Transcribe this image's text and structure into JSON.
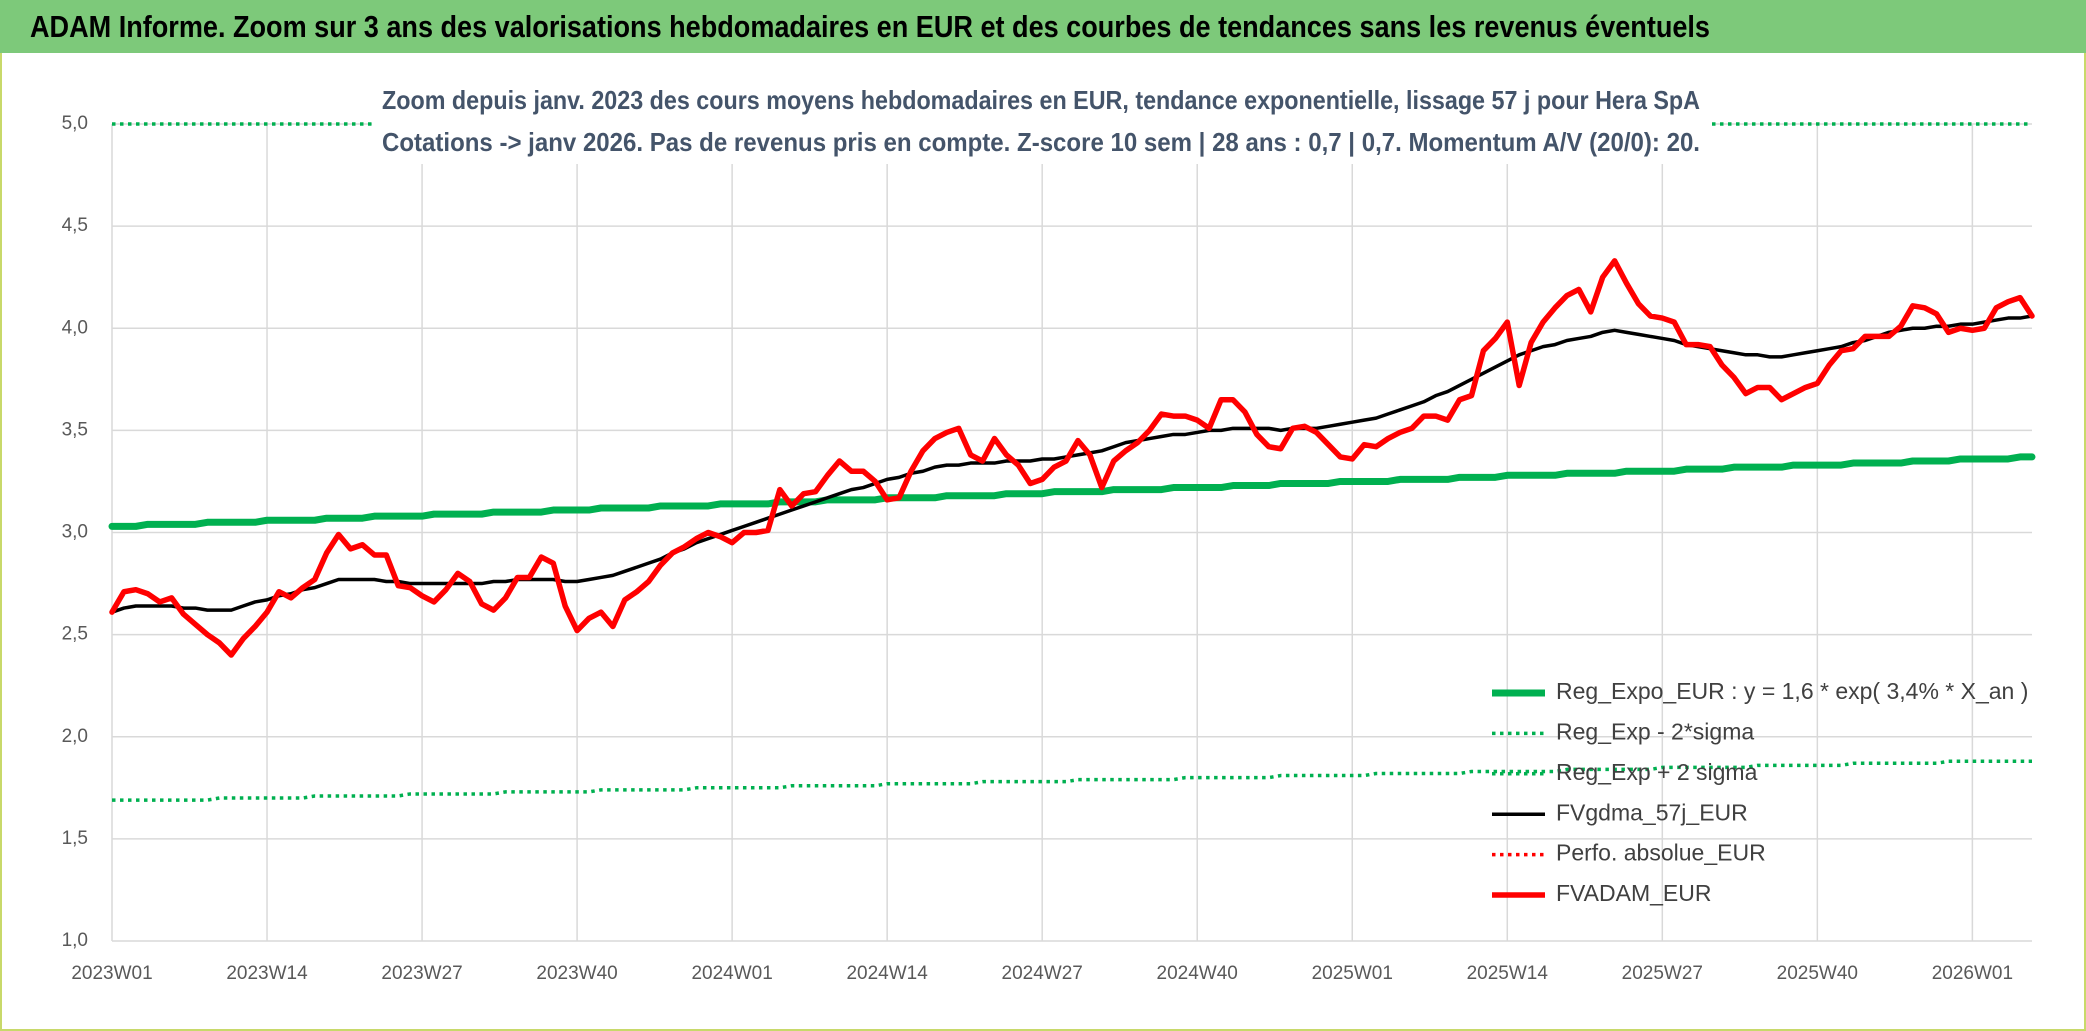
{
  "chart_data": {
    "type": "line",
    "title": "ADAM Informe. Zoom sur 3 ans des valorisations hebdomadaires en EUR et des courbes de tendances sans les revenus éventuels",
    "subtitle": [
      "Zoom depuis janv. 2023 des cours moyens hebdomadaires en EUR, tendance exponentielle, lissage 57 j pour Hera SpA",
      "Cotations -> janv 2026. Pas de revenus pris en compte. Z-score 10 sem | 28 ans : 0,7 | 0,7. Momentum A/V (20/0): 20."
    ],
    "categories": [
      "2023W01",
      null,
      null,
      null,
      null,
      null,
      null,
      null,
      null,
      null,
      null,
      null,
      null,
      "2023W14",
      null,
      null,
      null,
      null,
      null,
      null,
      null,
      null,
      null,
      null,
      null,
      null,
      "2023W27",
      null,
      null,
      null,
      null,
      null,
      null,
      null,
      null,
      null,
      null,
      null,
      null,
      "2023W40",
      null,
      null,
      null,
      null,
      null,
      null,
      null,
      null,
      null,
      null,
      null,
      null,
      "2024W01",
      null,
      null,
      null,
      null,
      null,
      null,
      null,
      null,
      null,
      null,
      null,
      null,
      "2024W14",
      null,
      null,
      null,
      null,
      null,
      null,
      null,
      null,
      null,
      null,
      null,
      null,
      "2024W27",
      null,
      null,
      null,
      null,
      null,
      null,
      null,
      null,
      null,
      null,
      null,
      null,
      "2024W40",
      null,
      null,
      null,
      null,
      null,
      null,
      null,
      null,
      null,
      null,
      null,
      null,
      "2025W01",
      null,
      null,
      null,
      null,
      null,
      null,
      null,
      null,
      null,
      null,
      null,
      null,
      "2025W14",
      null,
      null,
      null,
      null,
      null,
      null,
      null,
      null,
      null,
      null,
      null,
      null,
      "2025W27",
      null,
      null,
      null,
      null,
      null,
      null,
      null,
      null,
      null,
      null,
      null,
      null,
      "2025W40",
      null,
      null,
      null,
      null,
      null,
      null,
      null,
      null,
      null,
      null,
      null,
      null,
      "2026W01",
      null,
      null,
      null,
      null,
      null
    ],
    "ylim": [
      1,
      5
    ],
    "yticks": [
      {
        "value": 1,
        "label": "1,0"
      },
      {
        "value": 1.5,
        "label": "1,5"
      },
      {
        "value": 2,
        "label": "2,0"
      },
      {
        "value": 2.5,
        "label": "2,5"
      },
      {
        "value": 3,
        "label": "3,0"
      },
      {
        "value": 3.5,
        "label": "3,5"
      },
      {
        "value": 4,
        "label": "4,0"
      },
      {
        "value": 4.5,
        "label": "4,5"
      },
      {
        "value": 5,
        "label": "5,0"
      }
    ],
    "grid": true,
    "legend": "lower right",
    "series": [
      {
        "name": "Reg_Expo_EUR : y = 1,6 * exp( 3,4% *  X_an )",
        "color": "#00b050",
        "style": "thick",
        "values": [
          3.03,
          3.03,
          3.03,
          3.04,
          3.04,
          3.04,
          3.04,
          3.04,
          3.05,
          3.05,
          3.05,
          3.05,
          3.05,
          3.06,
          3.06,
          3.06,
          3.06,
          3.06,
          3.07,
          3.07,
          3.07,
          3.07,
          3.08,
          3.08,
          3.08,
          3.08,
          3.08,
          3.09,
          3.09,
          3.09,
          3.09,
          3.09,
          3.1,
          3.1,
          3.1,
          3.1,
          3.1,
          3.11,
          3.11,
          3.11,
          3.11,
          3.12,
          3.12,
          3.12,
          3.12,
          3.12,
          3.13,
          3.13,
          3.13,
          3.13,
          3.13,
          3.14,
          3.14,
          3.14,
          3.14,
          3.14,
          3.15,
          3.15,
          3.15,
          3.15,
          3.16,
          3.16,
          3.16,
          3.16,
          3.16,
          3.17,
          3.17,
          3.17,
          3.17,
          3.17,
          3.18,
          3.18,
          3.18,
          3.18,
          3.18,
          3.19,
          3.19,
          3.19,
          3.19,
          3.2,
          3.2,
          3.2,
          3.2,
          3.2,
          3.21,
          3.21,
          3.21,
          3.21,
          3.21,
          3.22,
          3.22,
          3.22,
          3.22,
          3.22,
          3.23,
          3.23,
          3.23,
          3.23,
          3.24,
          3.24,
          3.24,
          3.24,
          3.24,
          3.25,
          3.25,
          3.25,
          3.25,
          3.25,
          3.26,
          3.26,
          3.26,
          3.26,
          3.26,
          3.27,
          3.27,
          3.27,
          3.27,
          3.28,
          3.28,
          3.28,
          3.28,
          3.28,
          3.29,
          3.29,
          3.29,
          3.29,
          3.29,
          3.3,
          3.3,
          3.3,
          3.3,
          3.3,
          3.31,
          3.31,
          3.31,
          3.31,
          3.32,
          3.32,
          3.32,
          3.32,
          3.32,
          3.33,
          3.33,
          3.33,
          3.33,
          3.33,
          3.34,
          3.34,
          3.34,
          3.34,
          3.34,
          3.35,
          3.35,
          3.35,
          3.35,
          3.36,
          3.36,
          3.36,
          3.36,
          3.36,
          3.37,
          3.37
        ]
      },
      {
        "name": "Reg_Exp - 2*sigma",
        "color": "#00b050",
        "style": "dotted",
        "values": [
          1.69,
          1.69,
          1.69,
          1.69,
          1.69,
          1.69,
          1.69,
          1.69,
          1.69,
          1.7,
          1.7,
          1.7,
          1.7,
          1.7,
          1.7,
          1.7,
          1.7,
          1.71,
          1.71,
          1.71,
          1.71,
          1.71,
          1.71,
          1.71,
          1.71,
          1.72,
          1.72,
          1.72,
          1.72,
          1.72,
          1.72,
          1.72,
          1.72,
          1.73,
          1.73,
          1.73,
          1.73,
          1.73,
          1.73,
          1.73,
          1.73,
          1.74,
          1.74,
          1.74,
          1.74,
          1.74,
          1.74,
          1.74,
          1.74,
          1.75,
          1.75,
          1.75,
          1.75,
          1.75,
          1.75,
          1.75,
          1.75,
          1.76,
          1.76,
          1.76,
          1.76,
          1.76,
          1.76,
          1.76,
          1.76,
          1.77,
          1.77,
          1.77,
          1.77,
          1.77,
          1.77,
          1.77,
          1.77,
          1.78,
          1.78,
          1.78,
          1.78,
          1.78,
          1.78,
          1.78,
          1.78,
          1.79,
          1.79,
          1.79,
          1.79,
          1.79,
          1.79,
          1.79,
          1.79,
          1.79,
          1.8,
          1.8,
          1.8,
          1.8,
          1.8,
          1.8,
          1.8,
          1.8,
          1.81,
          1.81,
          1.81,
          1.81,
          1.81,
          1.81,
          1.81,
          1.81,
          1.82,
          1.82,
          1.82,
          1.82,
          1.82,
          1.82,
          1.82,
          1.82,
          1.83,
          1.83,
          1.83,
          1.83,
          1.83,
          1.83,
          1.83,
          1.83,
          1.84,
          1.84,
          1.84,
          1.84,
          1.84,
          1.84,
          1.84,
          1.84,
          1.85,
          1.85,
          1.85,
          1.85,
          1.85,
          1.85,
          1.85,
          1.85,
          1.86,
          1.86,
          1.86,
          1.86,
          1.86,
          1.86,
          1.86,
          1.86,
          1.87,
          1.87,
          1.87,
          1.87,
          1.87,
          1.87,
          1.87,
          1.87,
          1.88,
          1.88,
          1.88,
          1.88,
          1.88,
          1.88,
          1.88,
          1.88
        ]
      },
      {
        "name": "Reg_Exp + 2 sigma",
        "color": "#00b050",
        "style": "dotted",
        "values": [
          5,
          5,
          5,
          5,
          5,
          5,
          5,
          5,
          5,
          5,
          5,
          5,
          5,
          5,
          5,
          5,
          5,
          5,
          5,
          5,
          5,
          5,
          5,
          5,
          5,
          5,
          5,
          5,
          5,
          5,
          5,
          5,
          5,
          5,
          5,
          5,
          5,
          5,
          5,
          5,
          5,
          5,
          5,
          5,
          5,
          5,
          5,
          5,
          5,
          5,
          5,
          5,
          5,
          5,
          5,
          5,
          5,
          5,
          5,
          5,
          5,
          5,
          5,
          5,
          5,
          5,
          5,
          5,
          5,
          5,
          5,
          5,
          5,
          5,
          5,
          5,
          5,
          5,
          5,
          5,
          5,
          5,
          5,
          5,
          5,
          5,
          5,
          5,
          5,
          5,
          5,
          5,
          5,
          5,
          5,
          5,
          5,
          5,
          5,
          5,
          5,
          5,
          5,
          5,
          5,
          5,
          5,
          5,
          5,
          5,
          5,
          5,
          5,
          5,
          5,
          5,
          5,
          5,
          5,
          5,
          5,
          5,
          5,
          5,
          5,
          5,
          5,
          5,
          5,
          5,
          5,
          5,
          5,
          5,
          5,
          5,
          5,
          5,
          5,
          5,
          5,
          5,
          5,
          5,
          5,
          5,
          5,
          5,
          5,
          5,
          5,
          5,
          5,
          5,
          5,
          5,
          5,
          5,
          5,
          5,
          5,
          5
        ]
      },
      {
        "name": "FVgdma_57j_EUR",
        "color": "#000000",
        "style": "solid",
        "values": [
          2.61,
          2.63,
          2.64,
          2.64,
          2.64,
          2.64,
          2.63,
          2.63,
          2.62,
          2.62,
          2.62,
          2.64,
          2.66,
          2.67,
          2.69,
          2.7,
          2.72,
          2.73,
          2.75,
          2.77,
          2.77,
          2.77,
          2.77,
          2.76,
          2.76,
          2.75,
          2.75,
          2.75,
          2.75,
          2.75,
          2.75,
          2.75,
          2.76,
          2.76,
          2.77,
          2.77,
          2.77,
          2.77,
          2.76,
          2.76,
          2.77,
          2.78,
          2.79,
          2.81,
          2.83,
          2.85,
          2.87,
          2.9,
          2.92,
          2.95,
          2.97,
          2.99,
          3.01,
          3.03,
          3.05,
          3.07,
          3.09,
          3.11,
          3.13,
          3.15,
          3.17,
          3.19,
          3.21,
          3.22,
          3.24,
          3.26,
          3.27,
          3.29,
          3.3,
          3.32,
          3.33,
          3.33,
          3.34,
          3.34,
          3.34,
          3.35,
          3.35,
          3.35,
          3.36,
          3.36,
          3.37,
          3.38,
          3.39,
          3.4,
          3.42,
          3.44,
          3.45,
          3.46,
          3.47,
          3.48,
          3.48,
          3.49,
          3.5,
          3.5,
          3.51,
          3.51,
          3.51,
          3.51,
          3.5,
          3.51,
          3.51,
          3.51,
          3.52,
          3.53,
          3.54,
          3.55,
          3.56,
          3.58,
          3.6,
          3.62,
          3.64,
          3.67,
          3.69,
          3.72,
          3.75,
          3.78,
          3.81,
          3.84,
          3.87,
          3.89,
          3.91,
          3.92,
          3.94,
          3.95,
          3.96,
          3.98,
          3.99,
          3.98,
          3.97,
          3.96,
          3.95,
          3.94,
          3.92,
          3.91,
          3.9,
          3.89,
          3.88,
          3.87,
          3.87,
          3.86,
          3.86,
          3.87,
          3.88,
          3.89,
          3.9,
          3.91,
          3.93,
          3.94,
          3.96,
          3.98,
          3.99,
          4.0,
          4.0,
          4.01,
          4.01,
          4.02,
          4.02,
          4.03,
          4.04,
          4.05,
          4.05,
          4.06
        ]
      },
      {
        "name": "Perfo. absolue_EUR",
        "color": "#ff0000",
        "style": "dotted",
        "values": [
          null,
          null,
          null,
          null,
          null,
          null,
          null,
          null,
          null,
          null,
          null,
          null,
          null,
          null,
          null,
          null,
          null,
          null,
          null,
          null,
          null,
          null,
          null,
          null,
          null,
          null,
          null,
          null,
          null,
          null,
          null,
          null,
          null,
          null,
          null,
          null,
          null,
          null,
          null,
          null,
          null,
          null,
          null,
          null,
          null,
          null,
          null,
          null,
          null,
          null,
          null,
          null,
          null,
          null,
          null,
          null,
          null,
          null,
          null,
          null,
          null,
          null,
          null,
          null,
          null,
          null,
          null,
          null,
          null,
          null,
          null,
          null,
          null,
          null,
          null,
          null,
          null,
          null,
          null,
          null,
          null,
          null,
          null,
          null,
          null,
          null,
          null,
          null,
          null,
          null,
          null,
          null,
          null,
          null,
          null,
          null,
          null,
          null,
          null,
          null,
          null,
          null,
          null,
          null,
          null,
          null,
          null,
          null,
          null,
          null,
          null,
          null,
          null,
          null,
          null,
          null,
          null,
          null,
          null,
          null,
          null,
          null,
          null,
          null,
          null,
          null,
          null,
          null,
          null,
          null,
          null,
          null,
          null,
          null,
          null,
          null,
          null,
          null,
          null,
          null,
          null,
          null,
          null,
          null,
          null,
          null,
          null,
          null,
          null,
          null,
          null,
          null,
          null,
          null,
          null,
          null,
          null,
          null,
          null,
          null,
          null,
          null
        ]
      },
      {
        "name": "FVADAM_EUR",
        "color": "#ff0000",
        "style": "bold",
        "values": [
          2.61,
          2.71,
          2.72,
          2.7,
          2.66,
          2.68,
          2.6,
          2.55,
          2.5,
          2.46,
          2.4,
          2.48,
          2.54,
          2.61,
          2.71,
          2.68,
          2.73,
          2.77,
          2.9,
          2.99,
          2.92,
          2.94,
          2.89,
          2.89,
          2.74,
          2.73,
          2.69,
          2.66,
          2.72,
          2.8,
          2.76,
          2.65,
          2.62,
          2.68,
          2.78,
          2.78,
          2.88,
          2.85,
          2.64,
          2.52,
          2.58,
          2.61,
          2.54,
          2.67,
          2.71,
          2.76,
          2.84,
          2.9,
          2.93,
          2.97,
          3.0,
          2.98,
          2.95,
          3.0,
          3.0,
          3.01,
          3.21,
          3.13,
          3.19,
          3.2,
          3.28,
          3.35,
          3.3,
          3.3,
          3.25,
          3.16,
          3.17,
          3.3,
          3.4,
          3.46,
          3.49,
          3.51,
          3.38,
          3.35,
          3.46,
          3.38,
          3.33,
          3.24,
          3.26,
          3.32,
          3.35,
          3.45,
          3.38,
          3.22,
          3.35,
          3.4,
          3.44,
          3.5,
          3.58,
          3.57,
          3.57,
          3.55,
          3.51,
          3.65,
          3.65,
          3.59,
          3.48,
          3.42,
          3.41,
          3.51,
          3.52,
          3.49,
          3.43,
          3.37,
          3.36,
          3.43,
          3.42,
          3.46,
          3.49,
          3.51,
          3.57,
          3.57,
          3.55,
          3.65,
          3.67,
          3.89,
          3.95,
          4.03,
          3.72,
          3.93,
          4.03,
          4.1,
          4.16,
          4.19,
          4.08,
          4.25,
          4.33,
          4.22,
          4.12,
          4.06,
          4.05,
          4.03,
          3.92,
          3.92,
          3.91,
          3.82,
          3.76,
          3.68,
          3.71,
          3.71,
          3.65,
          3.68,
          3.71,
          3.73,
          3.82,
          3.89,
          3.9,
          3.96,
          3.96,
          3.96,
          4.01,
          4.11,
          4.1,
          4.07,
          3.98,
          4.0,
          3.99,
          4.0,
          4.1,
          4.13,
          4.15,
          4.06
        ]
      }
    ]
  }
}
